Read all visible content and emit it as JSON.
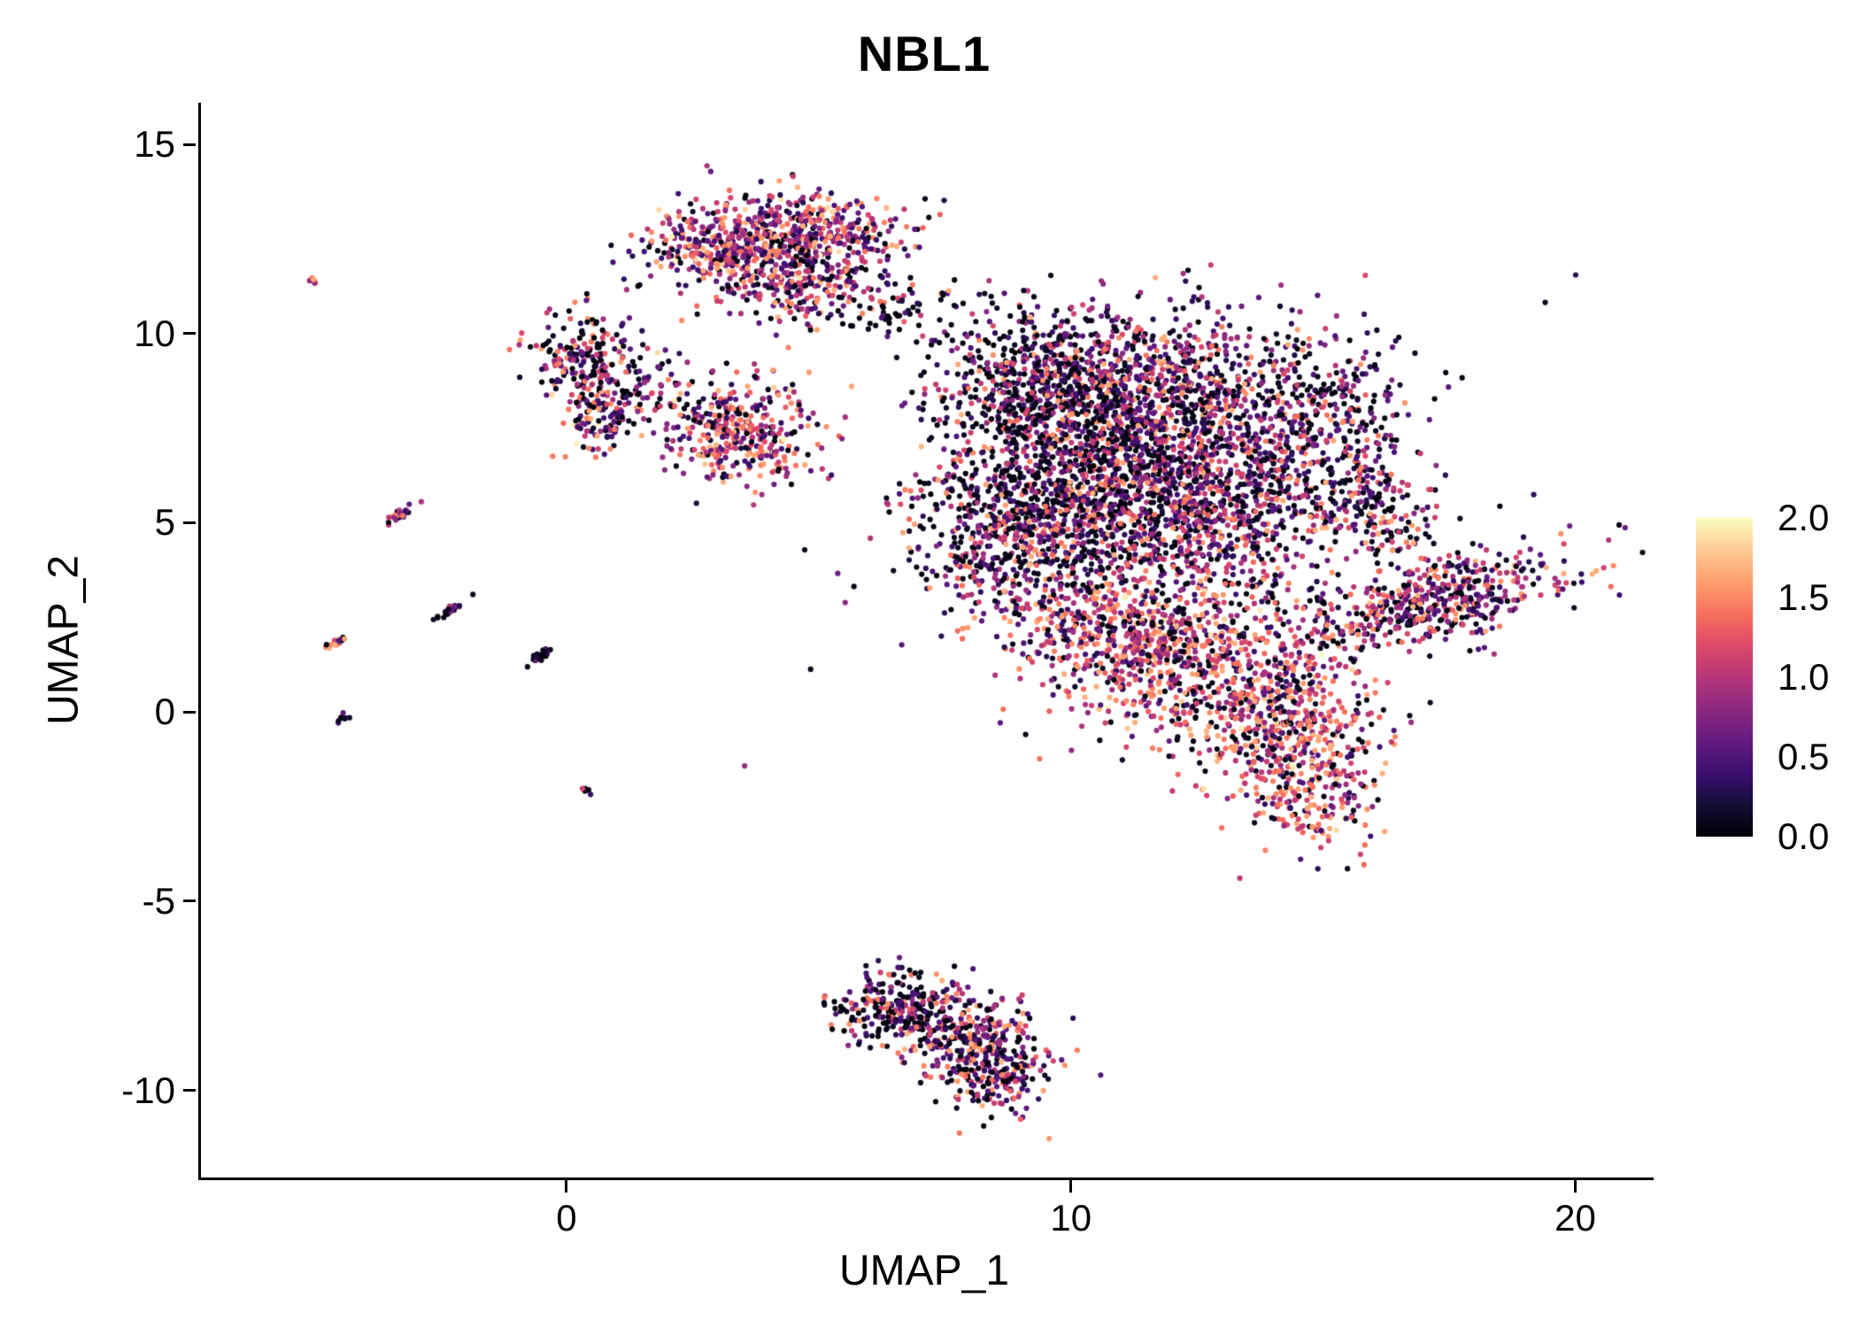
{
  "title": "NBL1",
  "axes": {
    "x": {
      "label": "UMAP_1",
      "ticks": [
        0,
        10,
        20
      ]
    },
    "y": {
      "label": "UMAP_2",
      "ticks": [
        -10,
        -5,
        0,
        5,
        10,
        15
      ]
    }
  },
  "legend": {
    "tick_labels": [
      "2.0",
      "1.5",
      "1.0",
      "0.5",
      "0.0"
    ],
    "tick_values": [
      2.0,
      1.5,
      1.0,
      0.5,
      0.0
    ],
    "min": 0,
    "max": 2
  },
  "colormap": {
    "name": "magma",
    "stops": [
      [
        0.0,
        0,
        0,
        4
      ],
      [
        0.1,
        20,
        14,
        54
      ],
      [
        0.2,
        59,
        15,
        112
      ],
      [
        0.3,
        100,
        26,
        128
      ],
      [
        0.4,
        140,
        41,
        129
      ],
      [
        0.5,
        183,
        55,
        121
      ],
      [
        0.6,
        222,
        73,
        104
      ],
      [
        0.7,
        247,
        112,
        92
      ],
      [
        0.8,
        254,
        159,
        109
      ],
      [
        0.9,
        254,
        202,
        149
      ],
      [
        1.0,
        252,
        253,
        191
      ]
    ]
  },
  "chart_data": {
    "type": "scatter",
    "title": "NBL1",
    "xlabel": "UMAP_1",
    "ylabel": "UMAP_2",
    "xlim": [
      -7.3,
      21.5
    ],
    "ylim": [
      -12.3,
      16.1
    ],
    "grid": false,
    "legend_position": "right",
    "color_scale": {
      "min": 0,
      "max": 2,
      "colormap": "magma"
    },
    "point_radius": 3.1,
    "seed": 42,
    "points_encoding": "gaussian_clusters",
    "value_bins": {
      "zero": [
        0.0,
        0.15
      ],
      "low": [
        0.25,
        0.65
      ],
      "mid": [
        0.75,
        1.2
      ],
      "high": [
        1.3,
        1.7
      ],
      "top": [
        1.75,
        2.0
      ]
    },
    "clusters": [
      {
        "name": "top-left-lobe",
        "n": 400,
        "cx": 3.2,
        "cy": 12.3,
        "sx": 0.85,
        "sy": 0.6,
        "mix": {
          "zero": 0.15,
          "low": 0.25,
          "mid": 0.35,
          "high": 0.22,
          "top": 0.03
        }
      },
      {
        "name": "top-right-lobe",
        "n": 350,
        "cx": 4.9,
        "cy": 12.6,
        "sx": 0.9,
        "sy": 0.55,
        "mix": {
          "zero": 0.15,
          "low": 0.25,
          "mid": 0.35,
          "high": 0.22,
          "top": 0.03
        }
      },
      {
        "name": "top-lower-lobe",
        "n": 160,
        "cx": 4.5,
        "cy": 11.2,
        "sx": 0.55,
        "sy": 0.5,
        "mix": {
          "zero": 0.2,
          "low": 0.3,
          "mid": 0.3,
          "high": 0.18,
          "top": 0.02
        }
      },
      {
        "name": "top-trail",
        "n": 90,
        "cx": 6.3,
        "cy": 10.8,
        "sx": 0.8,
        "sy": 0.5,
        "rot": -15,
        "mix": {
          "zero": 0.45,
          "low": 0.3,
          "mid": 0.15,
          "high": 0.1
        }
      },
      {
        "name": "left-upper-cluster",
        "n": 190,
        "cx": 0.3,
        "cy": 9.3,
        "sx": 0.5,
        "sy": 0.55,
        "mix": {
          "zero": 0.3,
          "low": 0.25,
          "mid": 0.25,
          "high": 0.18,
          "top": 0.02
        }
      },
      {
        "name": "left-lower-cluster",
        "n": 110,
        "cx": 0.6,
        "cy": 7.9,
        "sx": 0.4,
        "sy": 0.45,
        "mix": {
          "zero": 0.2,
          "low": 0.2,
          "mid": 0.3,
          "high": 0.28,
          "top": 0.02
        }
      },
      {
        "name": "left-connector",
        "n": 70,
        "cx": 1.7,
        "cy": 8.7,
        "sx": 0.6,
        "sy": 0.6,
        "mix": {
          "zero": 0.45,
          "low": 0.25,
          "mid": 0.2,
          "high": 0.1
        }
      },
      {
        "name": "mid-left-cluster",
        "n": 360,
        "cx": 3.3,
        "cy": 7.4,
        "sx": 0.8,
        "sy": 0.65,
        "mix": {
          "zero": 0.12,
          "low": 0.2,
          "mid": 0.33,
          "high": 0.32,
          "top": 0.03
        }
      },
      {
        "name": "main-upper-left",
        "n": 650,
        "cx": 9.4,
        "cy": 8.6,
        "sx": 1.1,
        "sy": 1.0,
        "mix": {
          "zero": 0.45,
          "low": 0.27,
          "mid": 0.18,
          "high": 0.1
        }
      },
      {
        "name": "main-upper-right",
        "n": 850,
        "cx": 12.0,
        "cy": 8.4,
        "sx": 1.5,
        "sy": 1.1,
        "mix": {
          "zero": 0.3,
          "low": 0.3,
          "mid": 0.25,
          "high": 0.15
        }
      },
      {
        "name": "main-center",
        "n": 850,
        "cx": 10.4,
        "cy": 6.0,
        "sx": 1.4,
        "sy": 1.2,
        "mix": {
          "zero": 0.5,
          "low": 0.22,
          "mid": 0.16,
          "high": 0.12
        }
      },
      {
        "name": "main-center-right",
        "n": 800,
        "cx": 12.6,
        "cy": 5.4,
        "sx": 1.3,
        "sy": 1.2,
        "mix": {
          "zero": 0.25,
          "low": 0.3,
          "mid": 0.3,
          "high": 0.15
        }
      },
      {
        "name": "main-left-lobe",
        "n": 380,
        "cx": 8.5,
        "cy": 4.6,
        "sx": 0.9,
        "sy": 1.0,
        "mix": {
          "zero": 0.3,
          "low": 0.25,
          "mid": 0.25,
          "high": 0.2
        }
      },
      {
        "name": "main-lower-left-arm",
        "n": 340,
        "cx": 10.2,
        "cy": 2.4,
        "sx": 0.9,
        "sy": 1.0,
        "mix": {
          "zero": 0.2,
          "low": 0.2,
          "mid": 0.3,
          "high": 0.28,
          "top": 0.02
        }
      },
      {
        "name": "main-lower-middle",
        "n": 600,
        "cx": 12.3,
        "cy": 1.4,
        "sx": 1.2,
        "sy": 1.1,
        "mix": {
          "zero": 0.15,
          "low": 0.15,
          "mid": 0.32,
          "high": 0.35,
          "top": 0.03
        }
      },
      {
        "name": "main-lower-right",
        "n": 400,
        "cx": 14.2,
        "cy": 0.0,
        "sx": 1.0,
        "sy": 0.9,
        "mix": {
          "zero": 0.25,
          "low": 0.15,
          "mid": 0.27,
          "high": 0.31,
          "top": 0.02
        }
      },
      {
        "name": "main-bottom-tail",
        "n": 250,
        "cx": 14.6,
        "cy": -2.0,
        "sx": 0.7,
        "sy": 0.9,
        "rot": 20,
        "mix": {
          "zero": 0.15,
          "low": 0.15,
          "mid": 0.3,
          "high": 0.38,
          "top": 0.02
        }
      },
      {
        "name": "main-right-upper-arm",
        "n": 300,
        "cx": 15.2,
        "cy": 7.6,
        "sx": 0.8,
        "sy": 1.2,
        "mix": {
          "zero": 0.35,
          "low": 0.3,
          "mid": 0.2,
          "high": 0.15
        }
      },
      {
        "name": "main-right-connector",
        "n": 160,
        "cx": 16.0,
        "cy": 5.2,
        "sx": 0.6,
        "sy": 0.8,
        "mix": {
          "zero": 0.3,
          "low": 0.25,
          "mid": 0.25,
          "high": 0.2
        }
      },
      {
        "name": "main-halo",
        "n": 220,
        "cx": 11.5,
        "cy": 5.5,
        "sx": 3.0,
        "sy": 2.6,
        "mix": {
          "zero": 0.5,
          "low": 0.2,
          "mid": 0.15,
          "high": 0.15
        }
      },
      {
        "name": "right-diagonal-arm",
        "n": 520,
        "cx": 17.0,
        "cy": 2.9,
        "sx": 1.5,
        "sy": 0.55,
        "rot": 18,
        "mix": {
          "zero": 0.25,
          "low": 0.25,
          "mid": 0.3,
          "high": 0.2
        }
      },
      {
        "name": "bottom-cluster-left",
        "n": 240,
        "cx": 6.5,
        "cy": -7.8,
        "sx": 0.6,
        "sy": 0.5,
        "mix": {
          "zero": 0.5,
          "low": 0.2,
          "mid": 0.15,
          "high": 0.15
        }
      },
      {
        "name": "bottom-cluster-mid",
        "n": 300,
        "cx": 7.8,
        "cy": -8.6,
        "sx": 0.8,
        "sy": 0.6,
        "rot": -25,
        "mix": {
          "zero": 0.25,
          "low": 0.25,
          "mid": 0.27,
          "high": 0.23
        }
      },
      {
        "name": "bottom-cluster-tip",
        "n": 170,
        "cx": 8.5,
        "cy": -9.6,
        "sx": 0.5,
        "sy": 0.5,
        "mix": {
          "zero": 0.3,
          "low": 0.35,
          "mid": 0.2,
          "high": 0.15
        }
      },
      {
        "name": "streak-far-top",
        "n": 8,
        "cx": -5.1,
        "cy": 11.4,
        "sx": 0.07,
        "sy": 0.07,
        "mix": {
          "low": 0.1,
          "mid": 0.3,
          "high": 0.5,
          "top": 0.1
        }
      },
      {
        "name": "streak-mid-5",
        "n": 26,
        "cx": -3.4,
        "cy": 5.2,
        "sx": 0.18,
        "sy": 0.05,
        "rot": 40,
        "mix": {
          "zero": 0.2,
          "low": 0.2,
          "mid": 0.25,
          "high": 0.3,
          "top": 0.05
        }
      },
      {
        "name": "streak-left-2",
        "n": 22,
        "cx": -4.6,
        "cy": 1.85,
        "sx": 0.16,
        "sy": 0.05,
        "rot": 35,
        "mix": {
          "zero": 0.15,
          "low": 0.15,
          "mid": 0.2,
          "high": 0.35,
          "top": 0.15
        }
      },
      {
        "name": "streak-dark-2.6",
        "n": 26,
        "cx": -2.4,
        "cy": 2.65,
        "sx": 0.16,
        "sy": 0.05,
        "rot": 40,
        "mix": {
          "zero": 0.55,
          "low": 0.35,
          "mid": 0.1
        }
      },
      {
        "name": "streak-dark-1.5",
        "n": 30,
        "cx": -0.55,
        "cy": 1.5,
        "sx": 0.18,
        "sy": 0.05,
        "rot": 38,
        "mix": {
          "zero": 0.7,
          "low": 0.25,
          "mid": 0.05
        }
      },
      {
        "name": "dot-left-0",
        "n": 10,
        "cx": -4.5,
        "cy": -0.15,
        "sx": 0.08,
        "sy": 0.05,
        "rot": 30,
        "mix": {
          "zero": 0.5,
          "low": 0.3,
          "mid": 0.2
        }
      },
      {
        "name": "dot-lone",
        "n": 7,
        "cx": 0.35,
        "cy": -2.1,
        "sx": 0.06,
        "sy": 0.05,
        "mix": {
          "zero": 0.5,
          "low": 0.3,
          "mid": 0.2
        }
      }
    ]
  }
}
